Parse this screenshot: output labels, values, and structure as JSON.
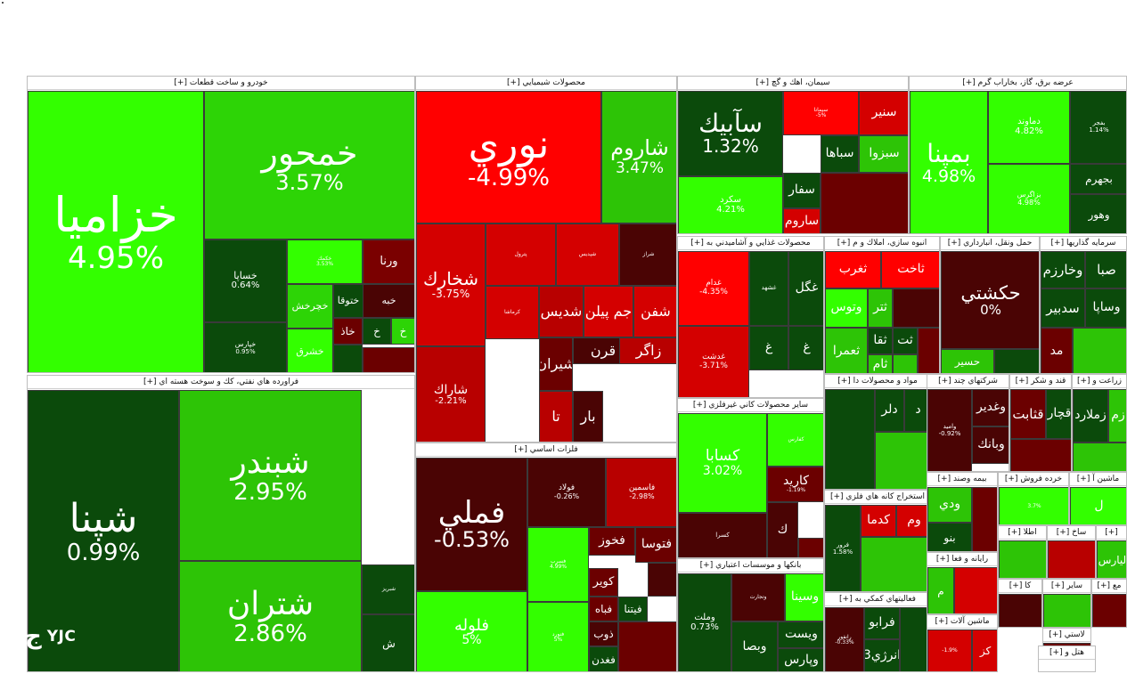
{
  "watermark": "YJC",
  "sectors": [
    {
      "title": "خودرو و ساخت قطعات [+]",
      "cells": [
        {
          "sym": "خزاميا",
          "chg": "4.95%",
          "color": "#33ff00"
        },
        {
          "sym": "خمحور",
          "chg": "3.57%",
          "color": "#2dd406"
        },
        {
          "sym": "خساپا",
          "chg": "0.64%",
          "color": "#0b4a0b"
        },
        {
          "sym": "خكمك",
          "chg": "3.53%",
          "color": "#33ff00"
        },
        {
          "sym": "ورنا",
          "chg": "",
          "color": "#7a0000"
        },
        {
          "sym": "خپارس",
          "chg": "0.95%",
          "color": "#0b4a0b"
        },
        {
          "sym": "خچرخش",
          "chg": "",
          "color": "#2dd406"
        },
        {
          "sym": "ختوقا",
          "chg": "",
          "color": "#0b4a0b"
        },
        {
          "sym": "خبه",
          "chg": "",
          "color": "#4a0404"
        },
        {
          "sym": "خشرق",
          "chg": "",
          "color": "#33ff00"
        },
        {
          "sym": "خاذ",
          "chg": "",
          "color": "#6b0000"
        },
        {
          "sym": "خ",
          "chg": "",
          "color": "#0b4a0b"
        },
        {
          "sym": "خ",
          "chg": "",
          "color": "#2dd406"
        }
      ]
    },
    {
      "title": "فراورده هاي نفتي، كك و سوخت هسته اي [+]",
      "cells": [
        {
          "sym": "شپنا",
          "chg": "0.99%",
          "color": "#0b4a0b"
        },
        {
          "sym": "شبندر",
          "chg": "2.95%",
          "color": "#2dc406"
        },
        {
          "sym": "شتران",
          "chg": "2.86%",
          "color": "#2dc406"
        },
        {
          "sym": "شبريز",
          "chg": "",
          "color": "#0b4a0b"
        },
        {
          "sym": "ش",
          "chg": "",
          "color": "#0b4a0b"
        }
      ]
    },
    {
      "title": "محصولات شيميايي [+]",
      "cells": [
        {
          "sym": "نوري",
          "chg": "-4.99%",
          "color": "#ff0000"
        },
        {
          "sym": "شاروم",
          "chg": "3.47%",
          "color": "#2dc406"
        },
        {
          "sym": "شخارك",
          "chg": "-3.75%",
          "color": "#d40000"
        },
        {
          "sym": "پترول",
          "chg": "",
          "color": "#d40000"
        },
        {
          "sym": "شپديس",
          "chg": "",
          "color": "#d40000"
        },
        {
          "sym": "شراز",
          "chg": "",
          "color": "#4a0404"
        },
        {
          "sym": "شاراك",
          "chg": "-2.21%",
          "color": "#b80000"
        },
        {
          "sym": "كرماشا",
          "chg": "",
          "color": "#d40000"
        },
        {
          "sym": "شديس",
          "chg": "",
          "color": "#b80000"
        },
        {
          "sym": "جم پيلن",
          "chg": "",
          "color": "#d40000"
        },
        {
          "sym": "شفن",
          "chg": "",
          "color": "#d40000"
        },
        {
          "sym": "شيران",
          "chg": "",
          "color": "#6b0000"
        },
        {
          "sym": "قرن",
          "chg": "",
          "color": "#4a0404"
        },
        {
          "sym": "زاگر",
          "chg": "",
          "color": "#b80000"
        },
        {
          "sym": "تا",
          "chg": "",
          "color": "#b80000"
        },
        {
          "sym": "بار",
          "chg": "",
          "color": "#4a0404"
        }
      ]
    },
    {
      "title": "فلزات اساسي [+]",
      "cells": [
        {
          "sym": "فملي",
          "chg": "-0.53%",
          "color": "#4a0404"
        },
        {
          "sym": "فولاد",
          "chg": "-0.26%",
          "color": "#4a0404"
        },
        {
          "sym": "فاسمين",
          "chg": "-2.98%",
          "color": "#b80000"
        },
        {
          "sym": "فخوز",
          "chg": "",
          "color": "#6b0000"
        },
        {
          "sym": "فتوسا",
          "chg": "",
          "color": "#6b0000"
        },
        {
          "sym": "فلوله",
          "chg": "5%",
          "color": "#33ff00"
        },
        {
          "sym": "فسرب",
          "chg": "4.99%",
          "color": "#33ff00"
        },
        {
          "sym": "فنورد",
          "chg": "5%",
          "color": "#33ff00"
        },
        {
          "sym": "كوير",
          "chg": "",
          "color": "#6b0000"
        },
        {
          "sym": "فباه",
          "chg": "",
          "color": "#6b0000"
        },
        {
          "sym": "ذوب",
          "chg": "",
          "color": "#4a0404"
        },
        {
          "sym": "فغدن",
          "chg": "",
          "color": "#0b4a0b"
        },
        {
          "sym": "فيتنا",
          "chg": "",
          "color": "#0b4a0b"
        }
      ]
    },
    {
      "title": "سيمان، اهك و گچ [+]",
      "cells": [
        {
          "sym": "سآبيك",
          "chg": "1.32%",
          "color": "#0b4a0b"
        },
        {
          "sym": "سيمانا",
          "chg": "-5%",
          "color": "#ff0000"
        },
        {
          "sym": "سنير",
          "chg": "",
          "color": "#d40000"
        },
        {
          "sym": "سباها",
          "chg": "",
          "color": "#0b4a0b"
        },
        {
          "sym": "سبزوا",
          "chg": "",
          "color": "#2dc406"
        },
        {
          "sym": "سفار",
          "chg": "",
          "color": "#0b4a0b"
        },
        {
          "sym": "سكرد",
          "chg": "4.21%",
          "color": "#33ff00"
        },
        {
          "sym": "ساروم",
          "chg": "",
          "color": "#d40000"
        }
      ]
    },
    {
      "title": "عرضه برق، گاز، بخاراب گرم [+]",
      "cells": [
        {
          "sym": "بمپنا",
          "chg": "4.98%",
          "color": "#33ff00"
        },
        {
          "sym": "دماوند",
          "chg": "4.82%",
          "color": "#33ff00"
        },
        {
          "sym": "بفجر",
          "chg": "1.14%",
          "color": "#0b4a0b"
        },
        {
          "sym": "بجهرم",
          "chg": "",
          "color": "#0b4a0b"
        },
        {
          "sym": "بزاگرس",
          "chg": "4.98%",
          "color": "#33ff00"
        },
        {
          "sym": "وهور",
          "chg": "",
          "color": "#0b4a0b"
        }
      ]
    },
    {
      "title": "محصولات غذايي و آشاميدني به [+]",
      "cells": [
        {
          "sym": "غدام",
          "chg": "-4.35%",
          "color": "#ff0000"
        },
        {
          "sym": "غشهد",
          "chg": "",
          "color": "#0b4a0b"
        },
        {
          "sym": "غگل",
          "chg": "",
          "color": "#0b4a0b"
        },
        {
          "sym": "غدشت",
          "chg": "-3.71%",
          "color": "#d40000"
        },
        {
          "sym": "غ",
          "chg": "",
          "color": "#0b4a0b"
        },
        {
          "sym": "غ",
          "chg": "",
          "color": "#0b4a0b"
        }
      ]
    },
    {
      "title": "انبوه سازي، املاك و م [+]",
      "cells": [
        {
          "sym": "ثغرب",
          "chg": "",
          "color": "#ff0000"
        },
        {
          "sym": "ثاخت",
          "chg": "",
          "color": "#ff0000"
        },
        {
          "sym": "وتوس",
          "chg": "",
          "color": "#33ff00"
        },
        {
          "sym": "ثتر",
          "chg": "",
          "color": "#2dc406"
        },
        {
          "sym": "ثعمرا",
          "chg": "",
          "color": "#2dc406"
        },
        {
          "sym": "ثقا",
          "chg": "",
          "color": "#0b4a0b"
        },
        {
          "sym": "ثت",
          "chg": "",
          "color": "#0b4a0b"
        },
        {
          "sym": "ثام",
          "chg": "",
          "color": "#2dc406"
        }
      ]
    },
    {
      "title": "حمل ونقل، انبارداري [+]",
      "cells": [
        {
          "sym": "حكشتي",
          "chg": "0%",
          "color": "#4a0404"
        },
        {
          "sym": "حسير",
          "chg": "",
          "color": "#2dc406"
        }
      ]
    },
    {
      "title": "سرمايه گذاريها [+]",
      "cells": [
        {
          "sym": "وخارزم",
          "chg": "",
          "color": "#0b4a0b"
        },
        {
          "sym": "صبا",
          "chg": "",
          "color": "#0b4a0b"
        },
        {
          "sym": "سدبير",
          "chg": "",
          "color": "#0b4a0b"
        },
        {
          "sym": "وساپا",
          "chg": "",
          "color": "#0b4a0b"
        },
        {
          "sym": "مد",
          "chg": "",
          "color": "#6b0000"
        }
      ]
    },
    {
      "title": "ساير محصولات كاني غيرفلزي [+]",
      "cells": [
        {
          "sym": "كسابا",
          "chg": "3.02%",
          "color": "#33ff00"
        },
        {
          "sym": "كفارس",
          "chg": "",
          "color": "#33ff00"
        },
        {
          "sym": "كاريد",
          "chg": "-1.19%",
          "color": "#6b0000"
        },
        {
          "sym": "كسرا",
          "chg": "",
          "color": "#4a0404"
        },
        {
          "sym": "ك",
          "chg": "",
          "color": "#4a0404"
        }
      ]
    },
    {
      "title": "بانكها و موسسات اعتباري [+]",
      "cells": [
        {
          "sym": "وملت",
          "chg": "0.73%",
          "color": "#0b4a0b"
        },
        {
          "sym": "وتجارت",
          "chg": "",
          "color": "#4a0404"
        },
        {
          "sym": "وسينا",
          "chg": "",
          "color": "#33ff00"
        },
        {
          "sym": "وبصا",
          "chg": "",
          "color": "#0b4a0b"
        },
        {
          "sym": "ويست",
          "chg": "",
          "color": "#0b4a0b"
        },
        {
          "sym": "وپارس",
          "chg": "",
          "color": "#0b4a0b"
        }
      ]
    },
    {
      "title": "مواد و محصولات دا [+]",
      "cells": [
        {
          "sym": "دلر",
          "chg": "",
          "color": "#0b4a0b"
        },
        {
          "sym": "د",
          "chg": "",
          "color": "#0b4a0b"
        }
      ]
    },
    {
      "title": "استخراج كانه هاي فلزي [+]",
      "cells": [
        {
          "sym": "كدما",
          "chg": "",
          "color": "#d40000"
        },
        {
          "sym": "وم",
          "chg": "",
          "color": "#d40000"
        },
        {
          "sym": "فرور",
          "chg": "1.58%",
          "color": "#0b4a0b"
        }
      ]
    },
    {
      "title": "فعاليتهاي كمكي به [+]",
      "cells": [
        {
          "sym": "فرابو",
          "chg": "",
          "color": "#0b4a0b"
        },
        {
          "sym": "انرژي3",
          "chg": "",
          "color": "#0b4a0b"
        },
        {
          "sym": "رانفور",
          "chg": "-0.33%",
          "color": "#4a0404"
        }
      ]
    },
    {
      "title": "شركتهاي چند [+]",
      "cells": [
        {
          "sym": "وغدير",
          "chg": "",
          "color": "#4a0404"
        },
        {
          "sym": "وبانك",
          "chg": "",
          "color": "#4a0404"
        },
        {
          "sym": "واميد",
          "chg": "-0.92%",
          "color": "#4a0404"
        }
      ]
    },
    {
      "title": "قند و شكر [+]",
      "cells": [
        {
          "sym": "قثابت",
          "chg": "",
          "color": "#6b0000"
        },
        {
          "sym": "قچار",
          "chg": "",
          "color": "#0b4a0b"
        }
      ]
    },
    {
      "title": "زراعت و [+]",
      "cells": [
        {
          "sym": "زملارد",
          "chg": "",
          "color": "#0b4a0b"
        },
        {
          "sym": "زم",
          "chg": "",
          "color": "#2dc406"
        }
      ]
    },
    {
      "title": "بيمه وصند [+]",
      "cells": [
        {
          "sym": "ودي",
          "chg": "",
          "color": "#2dc406"
        },
        {
          "sym": "بنو",
          "chg": "",
          "color": "#0b4a0b"
        }
      ]
    },
    {
      "title": "خرده فروش [+]",
      "cells": [
        {
          "sym": "",
          "chg": "3.7%",
          "color": "#33ff00"
        }
      ]
    },
    {
      "title": "ماشين آ [+]",
      "cells": [
        {
          "sym": "ل",
          "chg": "",
          "color": "#33ff00"
        }
      ]
    },
    {
      "title": "رايانه و فعا [+]",
      "cells": [
        {
          "sym": "م",
          "chg": "",
          "color": "#2dc406"
        }
      ]
    },
    {
      "title": "ماشين آلات [+]",
      "cells": [
        {
          "sym": "",
          "chg": "-1.9%",
          "color": "#d40000"
        },
        {
          "sym": "كز",
          "chg": "",
          "color": "#d40000"
        }
      ]
    },
    {
      "title": "اطلا [+]",
      "cells": []
    },
    {
      "title": "ساخ [+]",
      "cells": []
    },
    {
      "title": "[+]",
      "cells": [
        {
          "sym": "ليارس",
          "chg": "",
          "color": "#2dc406"
        }
      ]
    },
    {
      "title": "كا [+]",
      "cells": []
    },
    {
      "title": "ساير [+]",
      "cells": []
    },
    {
      "title": "مع [+]",
      "cells": []
    },
    {
      "title": "لاستي [+]",
      "cells": []
    },
    {
      "title": "هتل و [+]",
      "cells": []
    }
  ]
}
